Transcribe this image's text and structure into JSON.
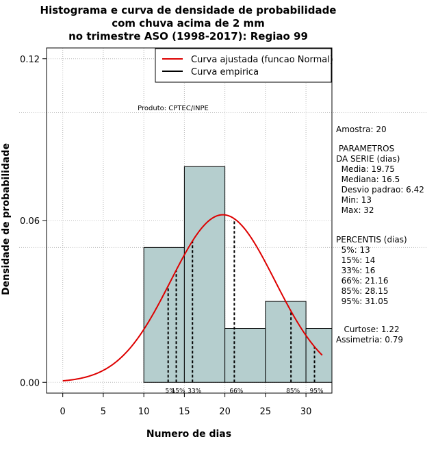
{
  "title_lines": [
    "Histograma e curva de densidade de probabilidade",
    "com chuva acima de 2 mm",
    "no trimestre ASO (1998-2017): Regiao 99"
  ],
  "chart_data": {
    "type": "histogram",
    "xlabel": "Numero de dias",
    "ylabel": "Densidade de probabilidade",
    "xlim": [
      -2,
      33.2
    ],
    "ylim": [
      -0.004,
      0.124
    ],
    "x_ticks": [
      0,
      5,
      10,
      15,
      20,
      25,
      30
    ],
    "y_ticks": [
      {
        "value": 0.0,
        "label": "0.00"
      },
      {
        "value": 0.06,
        "label": "0.06"
      },
      {
        "value": 0.12,
        "label": "0.12"
      }
    ],
    "grid_y_values": [
      0.1,
      0.05
    ],
    "bins": [
      {
        "x0": 10,
        "x1": 15,
        "density": 0.05
      },
      {
        "x0": 15,
        "x1": 20,
        "density": 0.08
      },
      {
        "x0": 20,
        "x1": 25,
        "density": 0.02
      },
      {
        "x0": 25,
        "x1": 30,
        "density": 0.03
      },
      {
        "x0": 30,
        "x1": 35,
        "density": 0.02
      }
    ],
    "normal_fit": {
      "mean": 19.75,
      "sd": 6.42,
      "x_from": 0,
      "x_to": 32
    },
    "percentile_lines": [
      {
        "label": "5%",
        "x": 13
      },
      {
        "label": "15%",
        "x": 14
      },
      {
        "label": "33%",
        "x": 16
      },
      {
        "label": "66%",
        "x": 21.16
      },
      {
        "label": "85%",
        "x": 28.15
      },
      {
        "label": "95%",
        "x": 31.05
      }
    ],
    "legend": [
      {
        "label": "Curva ajustada (funcao Normal)",
        "color": "#dd0000"
      },
      {
        "label": "Curva empirica",
        "color": "#000000"
      }
    ],
    "product_label": "Produto: CPTEC/INPE",
    "colors": {
      "bar_fill": "#b5cece",
      "curve": "#dd0000",
      "grid": "#bbbbbb"
    }
  },
  "side_panel": {
    "sample": "Amostra: 20",
    "params_title": " PARAMETROS\nDA SERIE (dias)",
    "params": [
      "  Media: 19.75",
      "  Mediana: 16.5",
      "  Desvio padrao: 6.42",
      "  Min: 13",
      "  Max: 32"
    ],
    "percentis_title": "PERCENTIS (dias)",
    "percentis": [
      "  5%: 13",
      "  15%: 14",
      "  33%: 16",
      "  66%: 21.16",
      "  85%: 28.15",
      "  95%: 31.05"
    ],
    "curtose": "   Curtose: 1.22",
    "assimetria": "Assimetria: 0.79"
  }
}
